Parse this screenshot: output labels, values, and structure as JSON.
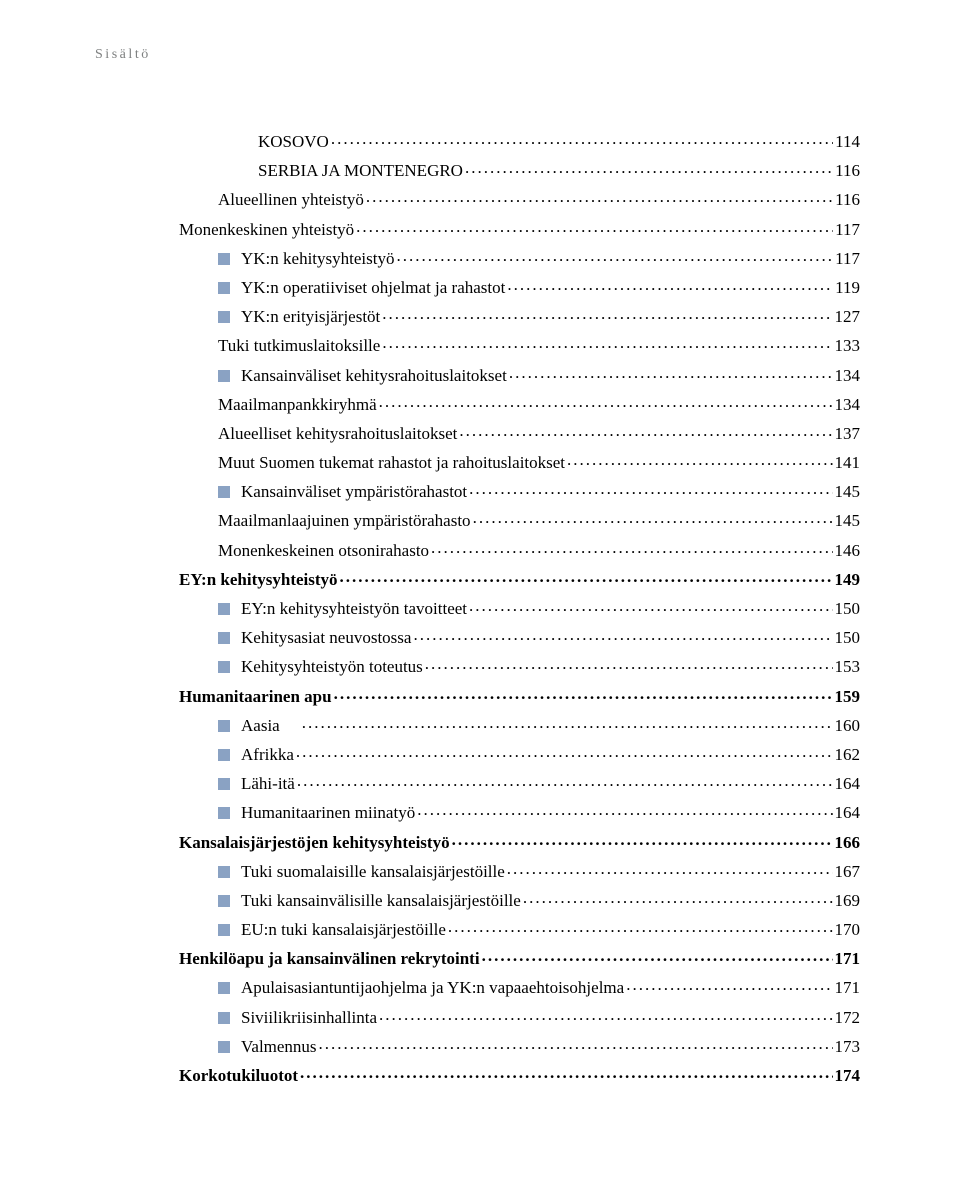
{
  "header": "Sisältö",
  "bullet_color": "#8aa2c3",
  "text_color": "#000000",
  "header_color": "#7e8080",
  "font_size_pt": 13,
  "entries": [
    {
      "label": "KOSOVO",
      "page": "114",
      "indent": 3,
      "bullet": false,
      "bold": false
    },
    {
      "label": "SERBIA JA MONTENEGRO",
      "page": "116",
      "indent": 3,
      "bullet": false,
      "bold": false
    },
    {
      "label": "Alueellinen yhteistyö",
      "page": "116",
      "indent": 2,
      "bullet": false,
      "bold": false
    },
    {
      "label": "Monenkeskinen yhteistyö",
      "page": "117",
      "indent": 1,
      "bullet": false,
      "bold": false
    },
    {
      "label": "YK:n kehitysyhteistyö",
      "page": "117",
      "indent": 2,
      "bullet": true,
      "bold": false
    },
    {
      "label": "YK:n operatiiviset ohjelmat ja rahastot",
      "page": "119",
      "indent": 2,
      "bullet": true,
      "bold": false
    },
    {
      "label": "YK:n erityisjärjestöt",
      "page": "127",
      "indent": 2,
      "bullet": true,
      "bold": false
    },
    {
      "label": "Tuki tutkimuslaitoksille",
      "page": "133",
      "indent": 2,
      "bullet": false,
      "bold": false
    },
    {
      "label": "Kansainväliset kehitysrahoituslaitokset",
      "page": "134",
      "indent": 2,
      "bullet": true,
      "bold": false
    },
    {
      "label": "Maailmanpankkiryhmä",
      "page": "134",
      "indent": 2,
      "bullet": false,
      "bold": false
    },
    {
      "label": "Alueelliset kehitysrahoituslaitokset",
      "page": "137",
      "indent": 2,
      "bullet": false,
      "bold": false
    },
    {
      "label": "Muut Suomen tukemat rahastot ja rahoituslaitokset",
      "page": "141",
      "indent": 2,
      "bullet": false,
      "bold": false
    },
    {
      "label": "Kansainväliset ympäristörahastot",
      "page": "145",
      "indent": 2,
      "bullet": true,
      "bold": false
    },
    {
      "label": "Maailmanlaajuinen ympäristörahasto",
      "page": "145",
      "indent": 2,
      "bullet": false,
      "bold": false
    },
    {
      "label": "Monenkeskeinen otsonirahasto",
      "page": "146",
      "indent": 2,
      "bullet": false,
      "bold": false
    },
    {
      "label": "EY:n kehitysyhteistyö",
      "page": "149",
      "indent": 1,
      "bullet": false,
      "bold": true
    },
    {
      "label": "EY:n kehitysyhteistyön tavoitteet",
      "page": "150",
      "indent": 2,
      "bullet": true,
      "bold": false
    },
    {
      "label": "Kehitysasiat neuvostossa",
      "page": "150",
      "indent": 2,
      "bullet": true,
      "bold": false
    },
    {
      "label": "Kehitysyhteistyön toteutus",
      "page": "153",
      "indent": 2,
      "bullet": true,
      "bold": false
    },
    {
      "label": "Humanitaarinen apu",
      "page": "159",
      "indent": 1,
      "bullet": false,
      "bold": true
    },
    {
      "label": "Aasia",
      "page": "160",
      "indent": 2,
      "bullet": true,
      "bold": false,
      "gap": true
    },
    {
      "label": "Afrikka",
      "page": "162",
      "indent": 2,
      "bullet": true,
      "bold": false
    },
    {
      "label": "Lähi-itä",
      "page": "164",
      "indent": 2,
      "bullet": true,
      "bold": false
    },
    {
      "label": "Humanitaarinen miinatyö",
      "page": "164",
      "indent": 2,
      "bullet": true,
      "bold": false
    },
    {
      "label": "Kansalaisjärjestöjen kehitysyhteistyö",
      "page": "166",
      "indent": 1,
      "bullet": false,
      "bold": true
    },
    {
      "label": "Tuki suomalaisille kansalaisjärjestöille",
      "page": "167",
      "indent": 2,
      "bullet": true,
      "bold": false
    },
    {
      "label": "Tuki kansainvälisille kansalaisjärjestöille",
      "page": "169",
      "indent": 2,
      "bullet": true,
      "bold": false
    },
    {
      "label": "EU:n tuki kansalaisjärjestöille",
      "page": "170",
      "indent": 2,
      "bullet": true,
      "bold": false
    },
    {
      "label": "Henkilöapu ja kansainvälinen rekrytointi",
      "page": "171",
      "indent": 1,
      "bullet": false,
      "bold": true
    },
    {
      "label": "Apulaisasiantuntijaohjelma ja YK:n vapaaehtoisohjelma",
      "page": "171",
      "indent": 2,
      "bullet": true,
      "bold": false
    },
    {
      "label": "Siviilikriisinhallinta",
      "page": "172",
      "indent": 2,
      "bullet": true,
      "bold": false
    },
    {
      "label": "Valmennus",
      "page": "173",
      "indent": 2,
      "bullet": true,
      "bold": false
    },
    {
      "label": "Korkotukiluotot",
      "page": "174",
      "indent": 1,
      "bullet": false,
      "bold": true
    }
  ]
}
